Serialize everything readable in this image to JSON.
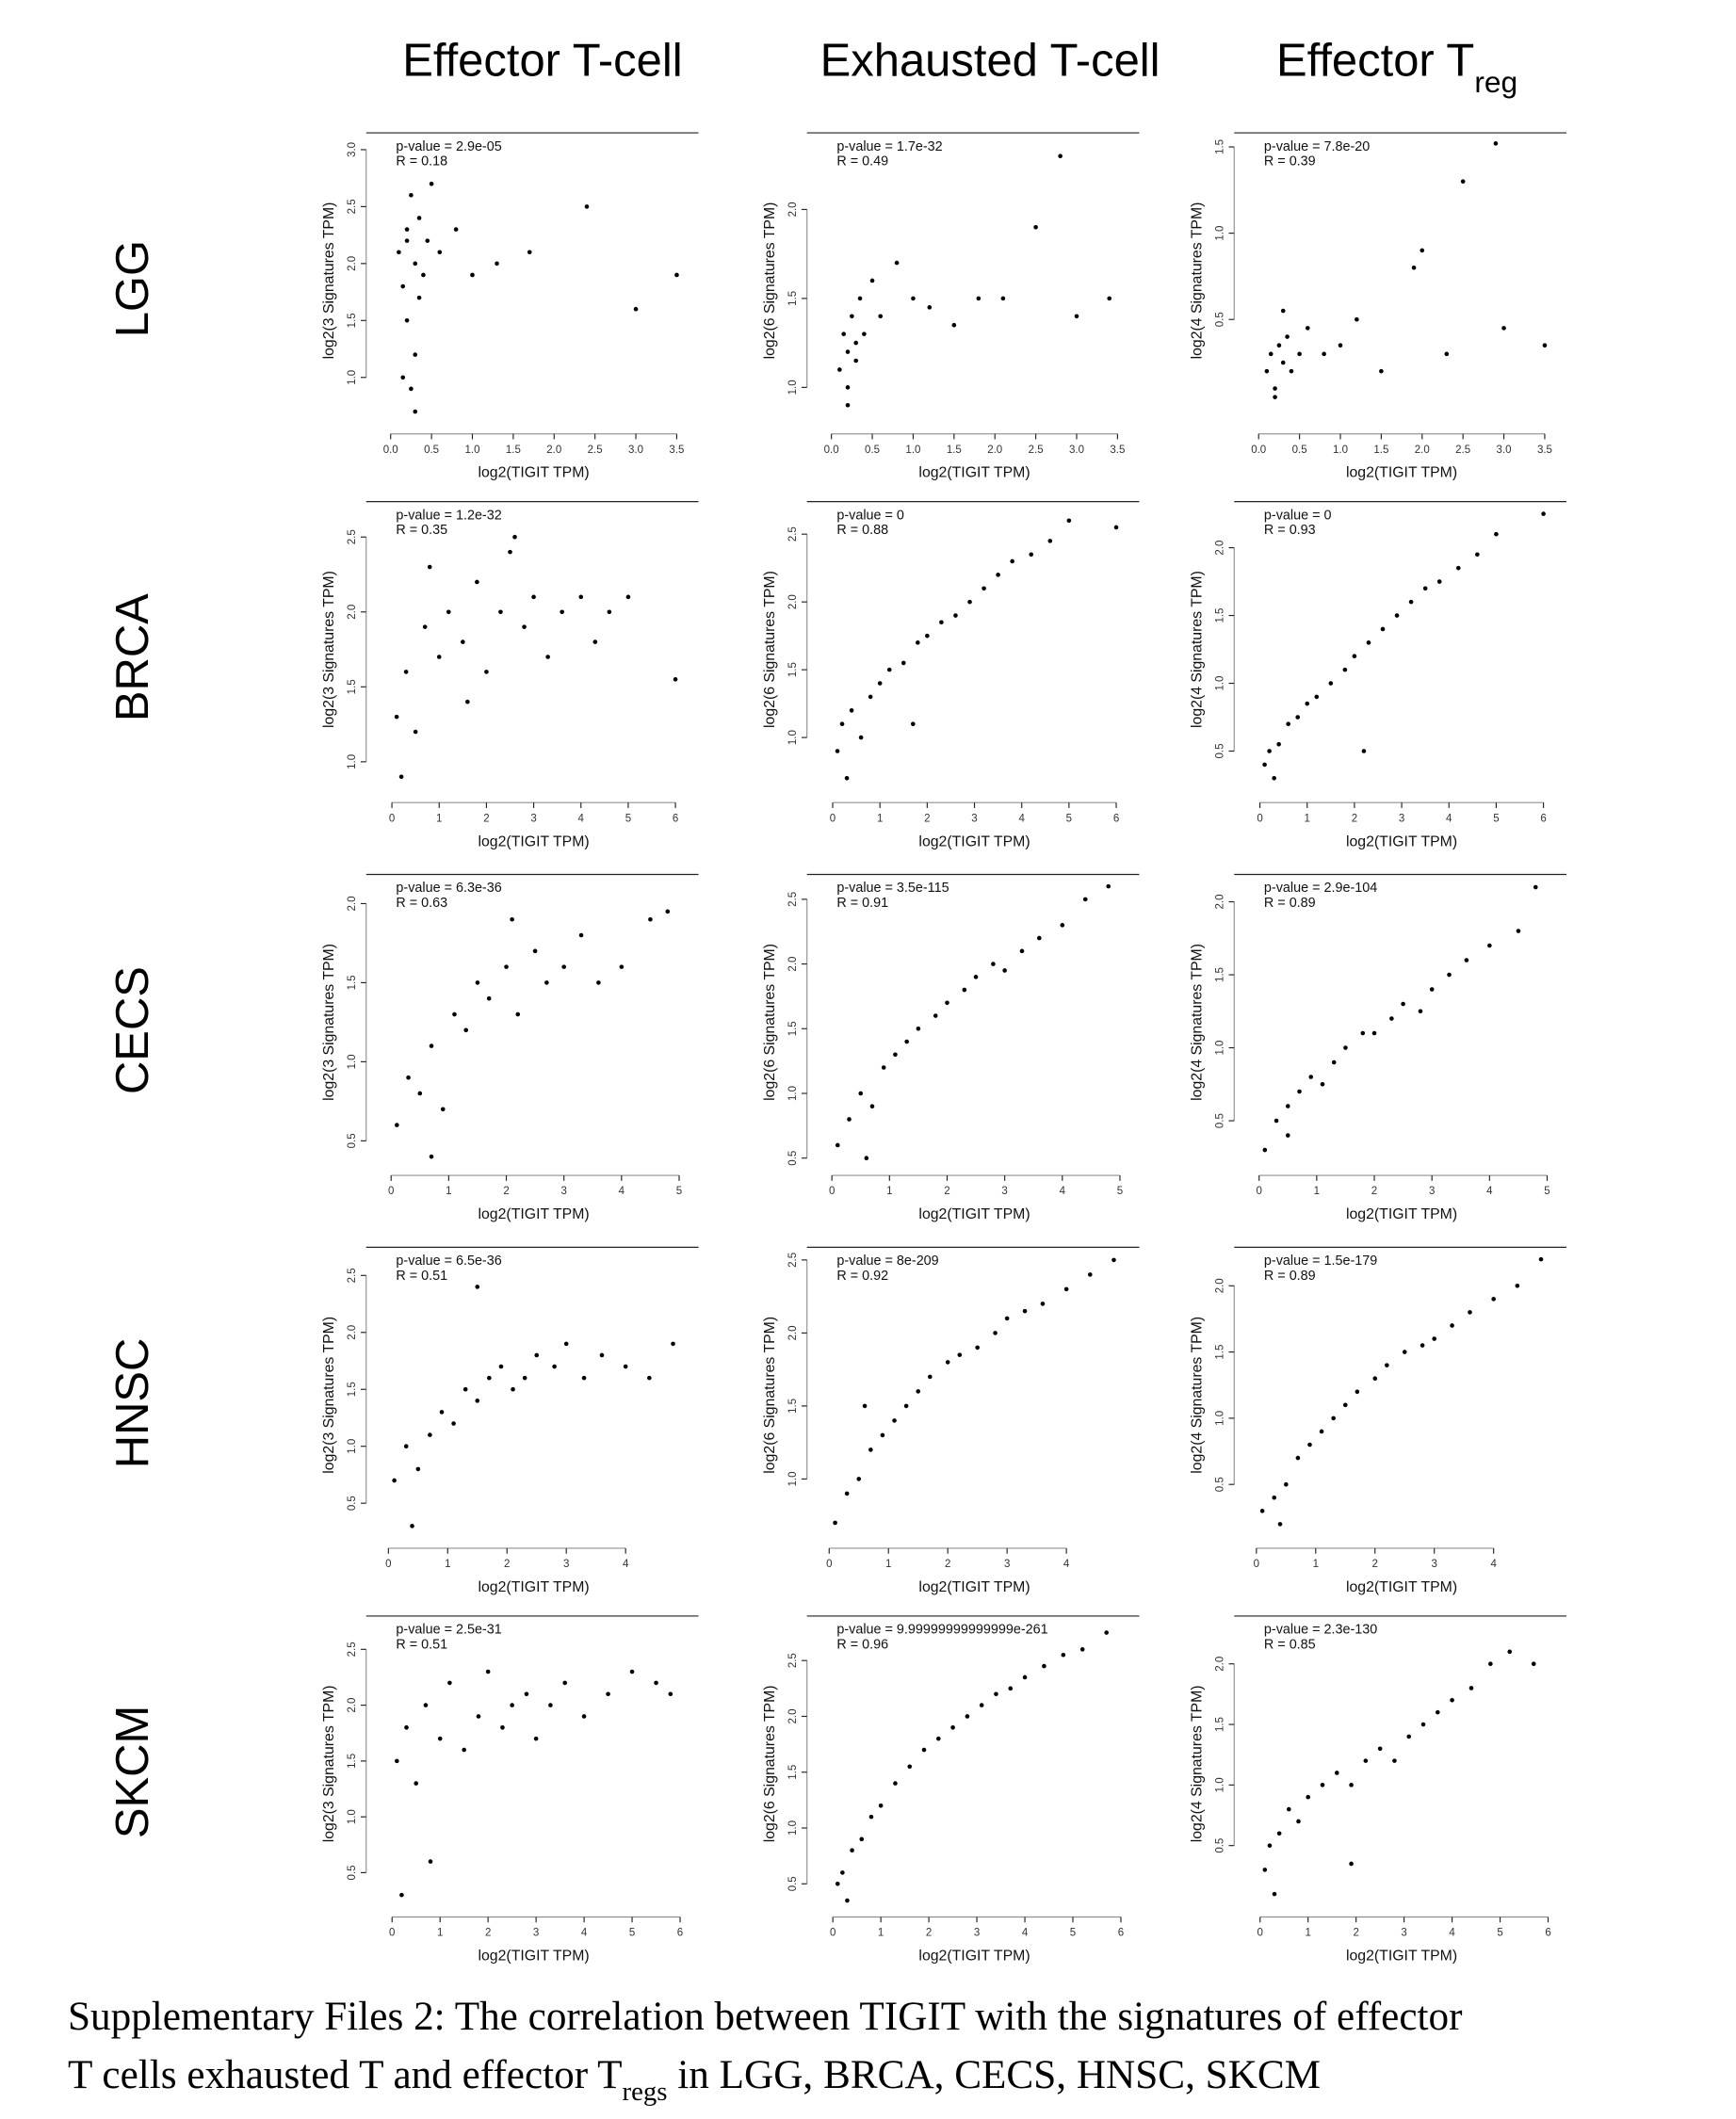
{
  "column_titles": [
    {
      "text": "Effector T-cell"
    },
    {
      "text": "Exhausted T-cell"
    },
    {
      "text": "Effector T",
      "subscript": "reg"
    }
  ],
  "row_labels": [
    "LGG",
    "BRCA",
    "CECS",
    "HNSC",
    "SKCM"
  ],
  "caption": {
    "line1": "Supplementary Files 2: The correlation between TIGIT with the signatures of effector",
    "line2": [
      "T cells exhausted T and effector T",
      "regs",
      " in LGG, BRCA, CECS, HNSC, SKCM"
    ]
  },
  "chart_data": [
    {
      "type": "scatter",
      "p_value_label": "p-value = 2.9e-05",
      "r_label": "R = 0.18",
      "xlabel": "log2(TIGIT TPM)",
      "ylabel": "log2(3 Signatures TPM)",
      "color": "#000000",
      "xlim": [
        -0.1,
        3.6
      ],
      "xticks": [
        {
          "value": 0,
          "label": "0.0"
        },
        0.5,
        {
          "value": 1,
          "label": "1.0"
        },
        1.5,
        {
          "value": 2,
          "label": "2.0"
        },
        2.5,
        {
          "value": 3,
          "label": "3.0"
        },
        3.5
      ],
      "ylim": [
        0.6,
        3.1
      ],
      "yticks": [
        {
          "value": 1,
          "label": "1.0"
        },
        1.5,
        {
          "value": 2,
          "label": "2.0"
        },
        2.5,
        {
          "value": 3,
          "label": "3.0"
        }
      ],
      "x": [
        0.1,
        0.15,
        0.2,
        0.2,
        0.25,
        0.3,
        0.3,
        0.35,
        0.4,
        0.45,
        0.5,
        0.15,
        0.25,
        0.6,
        0.8,
        1.0,
        1.3,
        1.7,
        2.4,
        3.0,
        3.5,
        0.3,
        0.2,
        0.35
      ],
      "y": [
        2.1,
        1.8,
        2.3,
        1.5,
        2.6,
        2.0,
        1.2,
        2.4,
        1.9,
        2.2,
        2.7,
        1.0,
        0.9,
        2.1,
        2.3,
        1.9,
        2.0,
        2.1,
        2.5,
        1.6,
        1.9,
        0.7,
        2.2,
        1.7
      ]
    },
    {
      "type": "scatter",
      "p_value_label": "p-value = 1.7e-32",
      "r_label": "R = 0.49",
      "xlabel": "log2(TIGIT TPM)",
      "ylabel": "log2(6 Signatures TPM)",
      "color": "#000000",
      "xlim": [
        -0.1,
        3.6
      ],
      "xticks": [
        {
          "value": 0,
          "label": "0.0"
        },
        0.5,
        {
          "value": 1,
          "label": "1.0"
        },
        1.5,
        {
          "value": 2,
          "label": "2.0"
        },
        2.5,
        {
          "value": 3,
          "label": "3.0"
        },
        3.5
      ],
      "ylim": [
        0.8,
        2.4
      ],
      "yticks": [
        {
          "value": 1,
          "label": "1.0"
        },
        1.5,
        {
          "value": 2,
          "label": "2.0"
        }
      ],
      "x": [
        0.1,
        0.15,
        0.2,
        0.2,
        0.25,
        0.3,
        0.35,
        0.4,
        0.5,
        0.6,
        0.8,
        1.0,
        1.2,
        1.5,
        1.8,
        2.1,
        2.5,
        3.0,
        3.4,
        0.2,
        0.3,
        2.8
      ],
      "y": [
        1.1,
        1.3,
        1.2,
        1.0,
        1.4,
        1.25,
        1.5,
        1.3,
        1.6,
        1.4,
        1.7,
        1.5,
        1.45,
        1.35,
        1.5,
        1.5,
        1.9,
        1.4,
        1.5,
        0.9,
        1.15,
        2.3
      ]
    },
    {
      "type": "scatter",
      "p_value_label": "p-value = 7.8e-20",
      "r_label": "R = 0.39",
      "xlabel": "log2(TIGIT TPM)",
      "ylabel": "log2(4 Signatures TPM)",
      "color": "#000000",
      "xlim": [
        -0.1,
        3.6
      ],
      "xticks": [
        {
          "value": 0,
          "label": "0.0"
        },
        0.5,
        {
          "value": 1,
          "label": "1.0"
        },
        1.5,
        {
          "value": 2,
          "label": "2.0"
        },
        2.5,
        {
          "value": 3,
          "label": "3.0"
        },
        3.5
      ],
      "ylim": [
        -0.1,
        1.55
      ],
      "yticks": [
        0.5,
        {
          "value": 1,
          "label": "1.0"
        },
        1.5
      ],
      "x": [
        0.1,
        0.15,
        0.2,
        0.25,
        0.3,
        0.35,
        0.4,
        0.5,
        0.6,
        0.8,
        1.0,
        1.2,
        1.5,
        1.9,
        2.3,
        2.5,
        3.0,
        3.5,
        0.2,
        0.3,
        2.0,
        2.9
      ],
      "y": [
        0.2,
        0.3,
        0.1,
        0.35,
        0.25,
        0.4,
        0.2,
        0.3,
        0.45,
        0.3,
        0.35,
        0.5,
        0.2,
        0.8,
        0.3,
        1.3,
        0.45,
        0.35,
        0.05,
        0.55,
        0.9,
        1.52
      ]
    },
    {
      "type": "scatter",
      "p_value_label": "p-value = 1.2e-32",
      "r_label": "R = 0.35",
      "xlabel": "log2(TIGIT TPM)",
      "ylabel": "log2(3 Signatures TPM)",
      "color": "#000000",
      "xlim": [
        -0.2,
        6.2
      ],
      "xticks": [
        0,
        1,
        2,
        3,
        4,
        5,
        6
      ],
      "ylim": [
        0.8,
        2.7
      ],
      "yticks": [
        {
          "value": 1,
          "label": "1.0"
        },
        1.5,
        {
          "value": 2,
          "label": "2.0"
        },
        2.5
      ],
      "x": [
        0.1,
        0.3,
        0.5,
        0.7,
        1.0,
        1.2,
        1.5,
        1.8,
        2.0,
        2.3,
        2.5,
        2.8,
        3.0,
        3.3,
        3.6,
        4.0,
        4.3,
        4.6,
        5.0,
        6.0,
        0.2,
        0.8,
        1.6,
        2.6
      ],
      "y": [
        1.3,
        1.6,
        1.2,
        1.9,
        1.7,
        2.0,
        1.8,
        2.2,
        1.6,
        2.0,
        2.4,
        1.9,
        2.1,
        1.7,
        2.0,
        2.1,
        1.8,
        2.0,
        2.1,
        1.55,
        0.9,
        2.3,
        1.4,
        2.5
      ]
    },
    {
      "type": "scatter",
      "p_value_label": "p-value = 0",
      "r_label": "R = 0.88",
      "xlabel": "log2(TIGIT TPM)",
      "ylabel": "log2(6 Signatures TPM)",
      "color": "#000000",
      "xlim": [
        -0.2,
        6.2
      ],
      "xticks": [
        0,
        1,
        2,
        3,
        4,
        5,
        6
      ],
      "ylim": [
        0.6,
        2.7
      ],
      "yticks": [
        {
          "value": 1,
          "label": "1.0"
        },
        1.5,
        {
          "value": 2,
          "label": "2.0"
        },
        2.5
      ],
      "x": [
        0.1,
        0.2,
        0.4,
        0.6,
        0.8,
        1.0,
        1.2,
        1.5,
        1.8,
        2.0,
        2.3,
        2.6,
        2.9,
        3.2,
        3.5,
        3.8,
        4.2,
        4.6,
        5.0,
        6.0,
        0.3,
        1.7
      ],
      "y": [
        0.9,
        1.1,
        1.2,
        1.0,
        1.3,
        1.4,
        1.5,
        1.55,
        1.7,
        1.75,
        1.85,
        1.9,
        2.0,
        2.1,
        2.2,
        2.3,
        2.35,
        2.45,
        2.6,
        2.55,
        0.7,
        1.1
      ]
    },
    {
      "type": "scatter",
      "p_value_label": "p-value = 0",
      "r_label": "R = 0.93",
      "xlabel": "log2(TIGIT TPM)",
      "ylabel": "log2(4 Signatures TPM)",
      "color": "#000000",
      "xlim": [
        -0.2,
        6.2
      ],
      "xticks": [
        0,
        1,
        2,
        3,
        4,
        5,
        6
      ],
      "ylim": [
        0.2,
        2.3
      ],
      "yticks": [
        0.5,
        {
          "value": 1,
          "label": "1.0"
        },
        1.5,
        {
          "value": 2,
          "label": "2.0"
        }
      ],
      "x": [
        0.1,
        0.2,
        0.4,
        0.6,
        0.8,
        1.0,
        1.2,
        1.5,
        1.8,
        2.0,
        2.3,
        2.6,
        2.9,
        3.2,
        3.5,
        3.8,
        4.2,
        4.6,
        5.0,
        6.0,
        0.3,
        2.2
      ],
      "y": [
        0.4,
        0.5,
        0.55,
        0.7,
        0.75,
        0.85,
        0.9,
        1.0,
        1.1,
        1.2,
        1.3,
        1.4,
        1.5,
        1.6,
        1.7,
        1.75,
        1.85,
        1.95,
        2.1,
        2.25,
        0.3,
        0.5
      ]
    },
    {
      "type": "scatter",
      "p_value_label": "p-value = 6.3e-36",
      "r_label": "R = 0.63",
      "xlabel": "log2(TIGIT TPM)",
      "ylabel": "log2(3 Signatures TPM)",
      "color": "#000000",
      "xlim": [
        -0.15,
        5.1
      ],
      "xticks": [
        0,
        1,
        2,
        3,
        4,
        5
      ],
      "ylim": [
        0.35,
        2.15
      ],
      "yticks": [
        0.5,
        {
          "value": 1,
          "label": "1.0"
        },
        1.5,
        {
          "value": 2,
          "label": "2.0"
        }
      ],
      "x": [
        0.1,
        0.3,
        0.5,
        0.7,
        0.9,
        1.1,
        1.3,
        1.5,
        1.7,
        2.0,
        2.2,
        2.5,
        2.7,
        3.0,
        3.3,
        3.6,
        4.0,
        4.5,
        4.8,
        0.7,
        2.1
      ],
      "y": [
        0.6,
        0.9,
        0.8,
        1.1,
        0.7,
        1.3,
        1.2,
        1.5,
        1.4,
        1.6,
        1.3,
        1.7,
        1.5,
        1.6,
        1.8,
        1.5,
        1.6,
        1.9,
        1.95,
        0.4,
        1.9
      ]
    },
    {
      "type": "scatter",
      "p_value_label": "p-value = 3.5e-115",
      "r_label": "R = 0.91",
      "xlabel": "log2(TIGIT TPM)",
      "ylabel": "log2(6 Signatures TPM)",
      "color": "#000000",
      "xlim": [
        -0.15,
        5.1
      ],
      "xticks": [
        0,
        1,
        2,
        3,
        4,
        5
      ],
      "ylim": [
        0.45,
        2.65
      ],
      "yticks": [
        0.5,
        {
          "value": 1,
          "label": "1.0"
        },
        1.5,
        {
          "value": 2,
          "label": "2.0"
        },
        2.5
      ],
      "x": [
        0.1,
        0.3,
        0.5,
        0.7,
        0.9,
        1.1,
        1.3,
        1.5,
        1.8,
        2.0,
        2.3,
        2.5,
        2.8,
        3.0,
        3.3,
        3.6,
        4.0,
        4.4,
        4.8,
        0.6
      ],
      "y": [
        0.6,
        0.8,
        1.0,
        0.9,
        1.2,
        1.3,
        1.4,
        1.5,
        1.6,
        1.7,
        1.8,
        1.9,
        2.0,
        1.95,
        2.1,
        2.2,
        2.3,
        2.5,
        2.6,
        0.5
      ]
    },
    {
      "type": "scatter",
      "p_value_label": "p-value = 2.9e-104",
      "r_label": "R = 0.89",
      "xlabel": "log2(TIGIT TPM)",
      "ylabel": "log2(4 Signatures TPM)",
      "color": "#000000",
      "xlim": [
        -0.15,
        5.1
      ],
      "xticks": [
        0,
        1,
        2,
        3,
        4,
        5
      ],
      "ylim": [
        0.2,
        2.15
      ],
      "yticks": [
        0.5,
        {
          "value": 1,
          "label": "1.0"
        },
        1.5,
        {
          "value": 2,
          "label": "2.0"
        }
      ],
      "x": [
        0.1,
        0.3,
        0.5,
        0.7,
        0.9,
        1.1,
        1.3,
        1.5,
        1.8,
        2.0,
        2.3,
        2.5,
        2.8,
        3.0,
        3.3,
        3.6,
        4.0,
        4.5,
        4.8,
        0.5
      ],
      "y": [
        0.3,
        0.5,
        0.6,
        0.7,
        0.8,
        0.75,
        0.9,
        1.0,
        1.1,
        1.1,
        1.2,
        1.3,
        1.25,
        1.4,
        1.5,
        1.6,
        1.7,
        1.8,
        2.1,
        0.4
      ]
    },
    {
      "type": "scatter",
      "p_value_label": "p-value = 6.5e-36",
      "r_label": "R = 0.51",
      "xlabel": "log2(TIGIT TPM)",
      "ylabel": "log2(3 Signatures TPM)",
      "color": "#000000",
      "xlim": [
        -0.1,
        5.0
      ],
      "xticks": [
        0,
        1,
        2,
        3,
        4
      ],
      "ylim": [
        0.2,
        2.7
      ],
      "yticks": [
        0.5,
        {
          "value": 1,
          "label": "1.0"
        },
        1.5,
        {
          "value": 2,
          "label": "2.0"
        },
        2.5
      ],
      "x": [
        0.1,
        0.3,
        0.5,
        0.7,
        0.9,
        1.1,
        1.3,
        1.5,
        1.7,
        1.9,
        2.1,
        2.3,
        2.5,
        2.8,
        3.0,
        3.3,
        3.6,
        4.0,
        4.4,
        4.8,
        0.4,
        1.5
      ],
      "y": [
        0.7,
        1.0,
        0.8,
        1.1,
        1.3,
        1.2,
        1.5,
        1.4,
        1.6,
        1.7,
        1.5,
        1.6,
        1.8,
        1.7,
        1.9,
        1.6,
        1.8,
        1.7,
        1.6,
        1.9,
        0.3,
        2.4
      ]
    },
    {
      "type": "scatter",
      "p_value_label": "p-value = 8e-209",
      "r_label": "R = 0.92",
      "xlabel": "log2(TIGIT TPM)",
      "ylabel": "log2(6 Signatures TPM)",
      "color": "#000000",
      "xlim": [
        -0.1,
        5.0
      ],
      "xticks": [
        0,
        1,
        2,
        3,
        4
      ],
      "ylim": [
        0.6,
        2.55
      ],
      "yticks": [
        {
          "value": 1,
          "label": "1.0"
        },
        1.5,
        {
          "value": 2,
          "label": "2.0"
        },
        2.5
      ],
      "x": [
        0.1,
        0.3,
        0.5,
        0.7,
        0.9,
        1.1,
        1.3,
        1.5,
        1.7,
        2.0,
        2.2,
        2.5,
        2.8,
        3.0,
        3.3,
        3.6,
        4.0,
        4.4,
        4.8,
        0.6
      ],
      "y": [
        0.7,
        0.9,
        1.0,
        1.2,
        1.3,
        1.4,
        1.5,
        1.6,
        1.7,
        1.8,
        1.85,
        1.9,
        2.0,
        2.1,
        2.15,
        2.2,
        2.3,
        2.4,
        2.5,
        1.5
      ]
    },
    {
      "type": "scatter",
      "p_value_label": "p-value = 1.5e-179",
      "r_label": "R = 0.89",
      "xlabel": "log2(TIGIT TPM)",
      "ylabel": "log2(4 Signatures TPM)",
      "color": "#000000",
      "xlim": [
        -0.1,
        5.0
      ],
      "xticks": [
        0,
        1,
        2,
        3,
        4
      ],
      "ylim": [
        0.1,
        2.25
      ],
      "yticks": [
        0.5,
        {
          "value": 1,
          "label": "1.0"
        },
        1.5,
        {
          "value": 2,
          "label": "2.0"
        }
      ],
      "x": [
        0.1,
        0.3,
        0.5,
        0.7,
        0.9,
        1.1,
        1.3,
        1.5,
        1.7,
        2.0,
        2.2,
        2.5,
        2.8,
        3.0,
        3.3,
        3.6,
        4.0,
        4.4,
        4.8,
        0.4
      ],
      "y": [
        0.3,
        0.4,
        0.5,
        0.7,
        0.8,
        0.9,
        1.0,
        1.1,
        1.2,
        1.3,
        1.4,
        1.5,
        1.55,
        1.6,
        1.7,
        1.8,
        1.9,
        2.0,
        2.2,
        0.2
      ]
    },
    {
      "type": "scatter",
      "p_value_label": "p-value = 2.5e-31",
      "r_label": "R = 0.51",
      "xlabel": "log2(TIGIT TPM)",
      "ylabel": "log2(3 Signatures TPM)",
      "color": "#000000",
      "xlim": [
        -0.2,
        6.1
      ],
      "xticks": [
        0,
        1,
        2,
        3,
        4,
        5,
        6
      ],
      "ylim": [
        0.2,
        2.75
      ],
      "yticks": [
        0.5,
        {
          "value": 1,
          "label": "1.0"
        },
        1.5,
        {
          "value": 2,
          "label": "2.0"
        },
        2.5
      ],
      "x": [
        0.1,
        0.3,
        0.5,
        0.7,
        1.0,
        1.2,
        1.5,
        1.8,
        2.0,
        2.3,
        2.5,
        2.8,
        3.0,
        3.3,
        3.6,
        4.0,
        4.5,
        5.0,
        5.5,
        5.8,
        0.2,
        0.8
      ],
      "y": [
        1.5,
        1.8,
        1.3,
        2.0,
        1.7,
        2.2,
        1.6,
        1.9,
        2.3,
        1.8,
        2.0,
        2.1,
        1.7,
        2.0,
        2.2,
        1.9,
        2.1,
        2.3,
        2.2,
        2.1,
        0.3,
        0.6
      ]
    },
    {
      "type": "scatter",
      "p_value_label": "p-value = 9.99999999999999e-261",
      "r_label": "R = 0.96",
      "xlabel": "log2(TIGIT TPM)",
      "ylabel": "log2(6 Signatures TPM)",
      "color": "#000000",
      "xlim": [
        -0.2,
        6.1
      ],
      "xticks": [
        0,
        1,
        2,
        3,
        4,
        5,
        6
      ],
      "ylim": [
        0.3,
        2.85
      ],
      "yticks": [
        0.5,
        {
          "value": 1,
          "label": "1.0"
        },
        1.5,
        {
          "value": 2,
          "label": "2.0"
        },
        2.5
      ],
      "x": [
        0.1,
        0.2,
        0.4,
        0.6,
        0.8,
        1.0,
        1.3,
        1.6,
        1.9,
        2.2,
        2.5,
        2.8,
        3.1,
        3.4,
        3.7,
        4.0,
        4.4,
        4.8,
        5.2,
        5.7,
        0.3
      ],
      "y": [
        0.5,
        0.6,
        0.8,
        0.9,
        1.1,
        1.2,
        1.4,
        1.55,
        1.7,
        1.8,
        1.9,
        2.0,
        2.1,
        2.2,
        2.25,
        2.35,
        2.45,
        2.55,
        2.6,
        2.75,
        0.35
      ]
    },
    {
      "type": "scatter",
      "p_value_label": "p-value = 2.3e-130",
      "r_label": "R = 0.85",
      "xlabel": "log2(TIGIT TPM)",
      "ylabel": "log2(4 Signatures TPM)",
      "color": "#000000",
      "xlim": [
        -0.2,
        6.1
      ],
      "xticks": [
        0,
        1,
        2,
        3,
        4,
        5,
        6
      ],
      "ylim": [
        0.0,
        2.35
      ],
      "yticks": [
        0.5,
        {
          "value": 1,
          "label": "1.0"
        },
        1.5,
        {
          "value": 2,
          "label": "2.0"
        }
      ],
      "x": [
        0.1,
        0.2,
        0.4,
        0.6,
        0.8,
        1.0,
        1.3,
        1.6,
        1.9,
        2.2,
        2.5,
        2.8,
        3.1,
        3.4,
        3.7,
        4.0,
        4.4,
        4.8,
        5.2,
        5.7,
        0.3,
        1.9
      ],
      "y": [
        0.3,
        0.5,
        0.6,
        0.8,
        0.7,
        0.9,
        1.0,
        1.1,
        1.0,
        1.2,
        1.3,
        1.2,
        1.4,
        1.5,
        1.6,
        1.7,
        1.8,
        2.0,
        2.1,
        2.0,
        0.1,
        0.35
      ]
    }
  ]
}
